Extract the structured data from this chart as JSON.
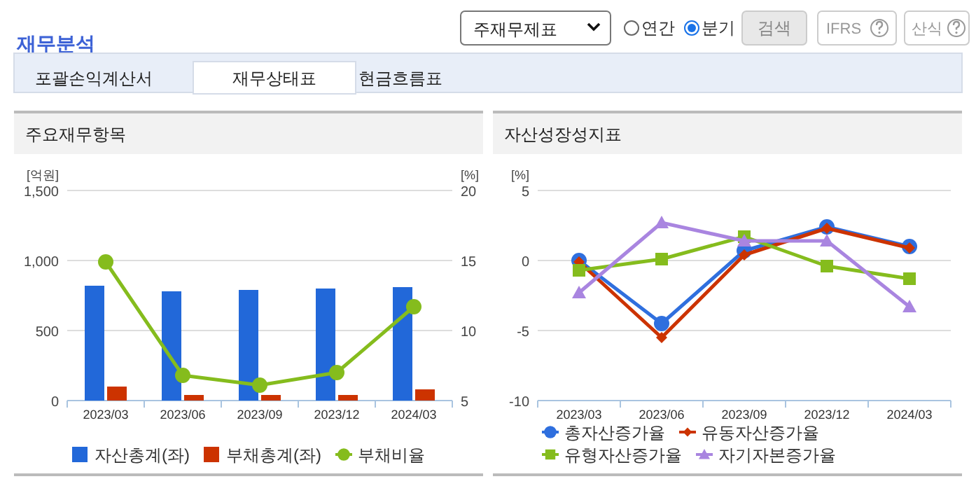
{
  "chart_data": [
    {
      "type": "other",
      "title": "재무분석",
      "annotations": [
        "주재무제표",
        "연간",
        "분기",
        "검색",
        "IFRS",
        "산식",
        "포괄손익계산서",
        "재무상태표",
        "현금흐름표"
      ]
    },
    {
      "type": "bar",
      "title": "주요재무항목",
      "categories": [
        "2023/03",
        "2023/06",
        "2023/09",
        "2023/12",
        "2024/03"
      ],
      "series": [
        {
          "name": "자산총계(좌)",
          "color": "#2268d9",
          "values": [
            820,
            780,
            790,
            800,
            810
          ]
        },
        {
          "name": "부채총계(좌)",
          "color": "#cc3300",
          "values": [
            100,
            40,
            40,
            40,
            80
          ]
        },
        {
          "name": "부채비율",
          "type": "line",
          "axis": "y2",
          "marker": "circle",
          "color": "#85bc1d",
          "values": [
            14.9,
            6.8,
            6.1,
            7.0,
            11.7
          ]
        }
      ],
      "ylabel": "[억원]",
      "ylim": [
        0,
        1500
      ],
      "yticks": [
        0,
        500,
        {
          "value": 1000,
          "label": "1,000"
        },
        {
          "value": 1500,
          "label": "1,500"
        }
      ],
      "y2label": "[%]",
      "y2lim": [
        5,
        20
      ],
      "y2ticks": [
        5,
        10,
        15,
        20
      ],
      "grid": "y",
      "legend": "bottom"
    },
    {
      "type": "line",
      "title": "자산성장성지표",
      "categories": [
        "2023/03",
        "2023/06",
        "2023/09",
        "2023/12",
        "2024/03"
      ],
      "series": [
        {
          "name": "총자산증가율",
          "marker": "circle",
          "color": "#2f6fde",
          "values": [
            0.0,
            -4.5,
            0.7,
            2.4,
            1.0
          ]
        },
        {
          "name": "유동자산증가율",
          "marker": "diamond",
          "color": "#cc3300",
          "values": [
            -0.1,
            -5.5,
            0.4,
            2.3,
            0.9
          ]
        },
        {
          "name": "유형자산증가율",
          "marker": "square",
          "color": "#85bc1d",
          "values": [
            -0.7,
            0.1,
            1.7,
            -0.4,
            -1.3
          ]
        },
        {
          "name": "자기자본증가율",
          "marker": "triangle",
          "color": "#a985e0",
          "values": [
            -2.3,
            2.7,
            1.4,
            1.4,
            -3.3
          ]
        }
      ],
      "ylabel": "[%]",
      "ylim": [
        -10,
        5
      ],
      "yticks": [
        -10,
        -5,
        0,
        5
      ],
      "grid": "y",
      "legend": "bottom"
    }
  ]
}
